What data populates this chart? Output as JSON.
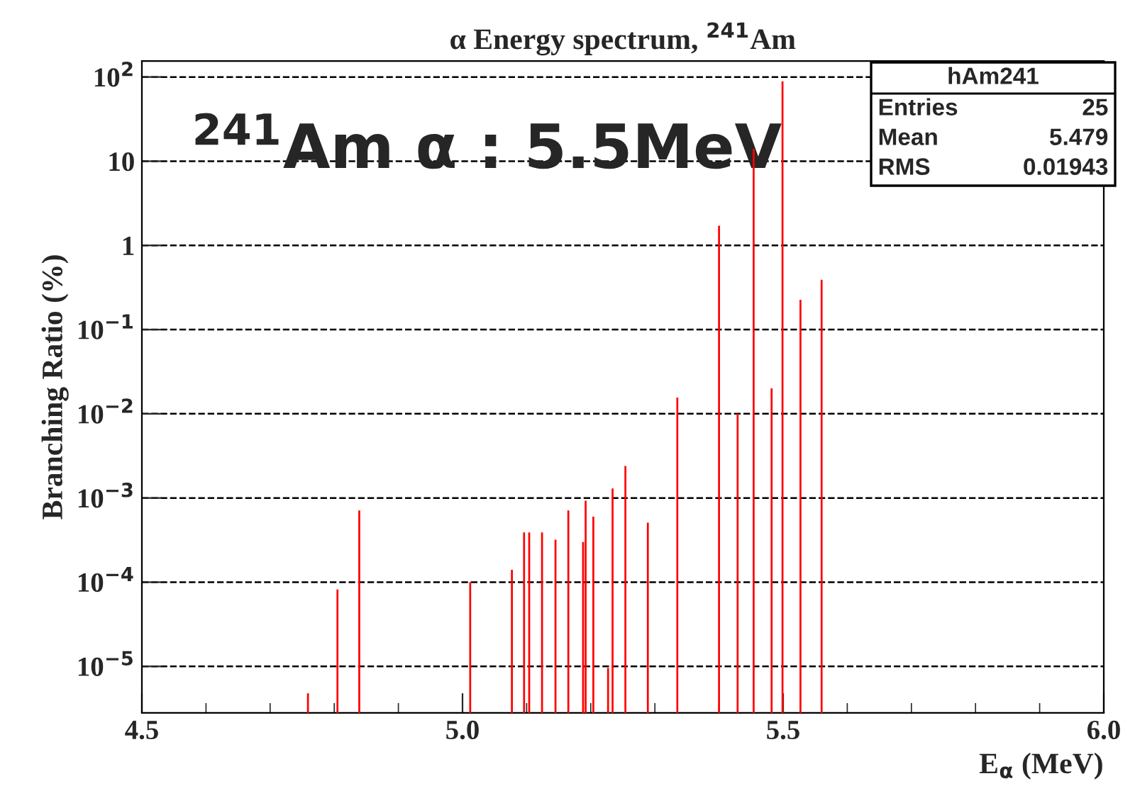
{
  "chart_data": {
    "type": "bar",
    "title": "α Energy spectrum, $^{241}$Am",
    "xlabel": "E$_{α}$ (MeV)",
    "ylabel": "Branching Ratio (%)",
    "x": [
      4.759,
      4.805,
      4.839,
      5.012,
      5.077,
      5.096,
      5.104,
      5.124,
      5.145,
      5.165,
      5.188,
      5.192,
      5.204,
      5.227,
      5.234,
      5.254,
      5.289,
      5.335,
      5.4,
      5.429,
      5.454,
      5.482,
      5.499,
      5.527,
      5.56
    ],
    "values": [
      4.8e-06,
      8.2e-05,
      0.00071,
      0.0001,
      0.00014,
      0.00039,
      0.00039,
      0.00039,
      0.00032,
      0.00071,
      0.0003,
      0.00093,
      0.0006,
      9.6e-06,
      0.0013,
      0.0024,
      0.00051,
      0.0156,
      1.71,
      0.01,
      14,
      0.02,
      89,
      0.226,
      0.39
    ],
    "color": "#ff0000",
    "log": "y",
    "xlim": [
      4.5,
      6.0
    ],
    "ylim": [
      2.8e-06,
      155
    ],
    "xticks": [
      {
        "value": 4.5,
        "label": "4.5"
      },
      {
        "value": 5.0,
        "label": "5.0"
      },
      {
        "value": 5.5,
        "label": "5.5"
      },
      {
        "value": 6.0,
        "label": "6.0"
      }
    ],
    "yticks": [
      {
        "value": 1e-05,
        "label": "10$^{−5}$"
      },
      {
        "value": 0.0001,
        "label": "10$^{−4}$"
      },
      {
        "value": 0.001,
        "label": "10$^{−3}$"
      },
      {
        "value": 0.01,
        "label": "10$^{−2}$"
      },
      {
        "value": 0.1,
        "label": "10$^{−1}$"
      },
      1,
      10,
      {
        "value": 100,
        "label": "10$^{2}$"
      }
    ],
    "grid": "y",
    "line_style": "dashed",
    "annotations": [
      "hAm241",
      "Entries",
      "25",
      "Mean",
      "5.479",
      "RMS",
      "0.01943",
      "$^{241}$Am α : 5.5MeV"
    ]
  }
}
